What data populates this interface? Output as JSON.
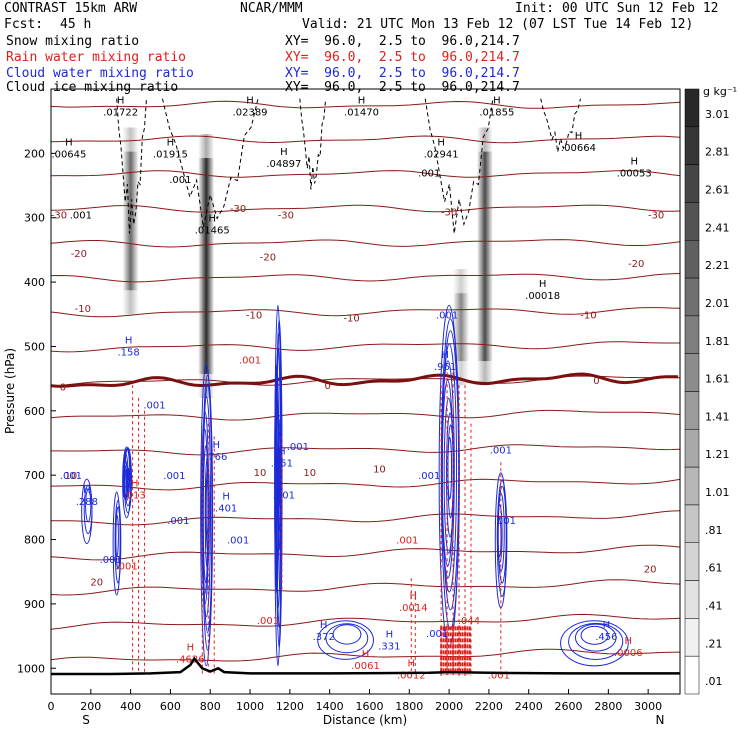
{
  "header": {
    "model": "CONTRAST 15km ARW",
    "org": "NCAR/MMM",
    "init": "Init: 00 UTC Sun 12 Feb 12",
    "fcst_label": "Fcst:",
    "fcst_value": "45 h",
    "valid": "Valid: 21 UTC Mon 13 Feb 12 (07 LST Tue 14 Feb 12)"
  },
  "fields": [
    {
      "name": "Snow mixing ratio",
      "xy": "XY=  96.0,  2.5 to  96.0,214.7",
      "color": "#000000"
    },
    {
      "name": "Rain water mixing ratio",
      "xy": "XY=  96.0,  2.5 to  96.0,214.7",
      "color": "#e0201a"
    },
    {
      "name": "Cloud water mixing ratio",
      "xy": "XY=  96.0,  2.5 to  96.0,214.7",
      "color": "#1c2ad8"
    },
    {
      "name": "Cloud ice mixing ratio",
      "xy": "XY=  96.0,  2.5 to  96.0,214.7",
      "color": "#000000"
    }
  ],
  "chart_data": {
    "type": "heatmap",
    "title": "",
    "xlabel": "Distance (km)",
    "ylabel": "Pressure (hPa)",
    "x_end_labels": {
      "left": "S",
      "right": "N"
    },
    "xlim": [
      0,
      3160
    ],
    "ylim": [
      1040,
      100
    ],
    "y_inverted": true,
    "x_ticks": [
      0,
      200,
      400,
      600,
      800,
      1000,
      1200,
      1400,
      1600,
      1800,
      2000,
      2200,
      2400,
      2600,
      2800,
      3000
    ],
    "y_ticks": [
      200,
      300,
      400,
      500,
      600,
      700,
      800,
      900,
      1000
    ],
    "colorbar": {
      "units": "g kg⁻¹",
      "levels": [
        "3.01",
        "2.81",
        "2.61",
        "2.41",
        "2.21",
        "2.01",
        "1.81",
        "1.61",
        "1.41",
        "1.21",
        "1.01",
        ".81",
        ".61",
        ".41",
        ".21",
        ".01"
      ]
    },
    "snow_columns": [
      {
        "x": 400,
        "p_top": 160,
        "p_bottom": 450,
        "peak": 0.6
      },
      {
        "x": 780,
        "p_top": 170,
        "p_bottom": 580,
        "peak": 1.2
      },
      {
        "x": 2180,
        "p_top": 160,
        "p_bottom": 560,
        "peak": 0.9
      },
      {
        "x": 2060,
        "p_top": 380,
        "p_bottom": 560,
        "peak": 0.3
      }
    ],
    "isotherms": [
      {
        "temp": -30,
        "p_left": 280,
        "p_right": 280
      },
      {
        "temp": -20,
        "p_left": 350,
        "p_right": 350
      },
      {
        "temp": -10,
        "p_left": 440,
        "p_right": 440
      },
      {
        "temp": 0,
        "p_left": 558,
        "p_right": 548,
        "bold": true
      },
      {
        "temp": 10,
        "p_left": 700,
        "p_right": 690
      },
      {
        "temp": 20,
        "p_left": 840,
        "p_right": 830
      }
    ],
    "contour_labels": [
      {
        "text": "-30",
        "x": 40,
        "p": 295,
        "color": "#8b1a1a"
      },
      {
        "text": "-30",
        "x": 1180,
        "p": 295,
        "color": "#8b1a1a"
      },
      {
        "text": "-30",
        "x": 2000,
        "p": 290,
        "color": "#8b1a1a"
      },
      {
        "text": "-30",
        "x": 3040,
        "p": 295,
        "color": "#8b1a1a"
      },
      {
        "text": "-30",
        "x": 940,
        "p": 285,
        "color": "#8b1a1a"
      },
      {
        "text": "-20",
        "x": 140,
        "p": 355,
        "color": "#8b1a1a"
      },
      {
        "text": "-20",
        "x": 1090,
        "p": 360,
        "color": "#8b1a1a"
      },
      {
        "text": "-20",
        "x": 2940,
        "p": 370,
        "color": "#8b1a1a"
      },
      {
        "text": "-10",
        "x": 160,
        "p": 440,
        "color": "#8b1a1a"
      },
      {
        "text": "-10",
        "x": 1020,
        "p": 450,
        "color": "#8b1a1a"
      },
      {
        "text": "-10",
        "x": 1510,
        "p": 455,
        "color": "#8b1a1a"
      },
      {
        "text": "-10",
        "x": 2700,
        "p": 450,
        "color": "#8b1a1a"
      },
      {
        "text": "0",
        "x": 60,
        "p": 562,
        "color": "#8b1a1a"
      },
      {
        "text": "0",
        "x": 1390,
        "p": 560,
        "color": "#8b1a1a"
      },
      {
        "text": "0",
        "x": 2740,
        "p": 552,
        "color": "#8b1a1a"
      },
      {
        "text": "10",
        "x": 100,
        "p": 700,
        "color": "#8b1a1a"
      },
      {
        "text": "10",
        "x": 1050,
        "p": 695,
        "color": "#8b1a1a"
      },
      {
        "text": "10",
        "x": 1300,
        "p": 695,
        "color": "#8b1a1a"
      },
      {
        "text": "10",
        "x": 1650,
        "p": 690,
        "color": "#8b1a1a"
      },
      {
        "text": "20",
        "x": 230,
        "p": 865,
        "color": "#8b1a1a"
      },
      {
        "text": "20",
        "x": 3010,
        "p": 845,
        "color": "#8b1a1a"
      }
    ],
    "extrema": [
      {
        "type": "H",
        "value": ".01722",
        "x": 350,
        "p": 135,
        "color": "#000000"
      },
      {
        "type": "H",
        "value": ".02389",
        "x": 1000,
        "p": 135,
        "color": "#000000"
      },
      {
        "type": "H",
        "value": ".01470",
        "x": 1560,
        "p": 135,
        "color": "#000000"
      },
      {
        "type": "H",
        "value": ".01855",
        "x": 2240,
        "p": 135,
        "color": "#000000"
      },
      {
        "type": "H",
        "value": ".00645",
        "x": 90,
        "p": 200,
        "color": "#000000"
      },
      {
        "type": "H",
        "value": ".01915",
        "x": 600,
        "p": 200,
        "color": "#000000"
      },
      {
        "type": "H",
        "value": ".04897",
        "x": 1170,
        "p": 215,
        "color": "#000000"
      },
      {
        "type": "H",
        "value": ".02941",
        "x": 1960,
        "p": 200,
        "color": "#000000"
      },
      {
        "type": "H",
        "value": ".00664",
        "x": 2650,
        "p": 190,
        "color": "#000000"
      },
      {
        "type": "H",
        "value": ".00053",
        "x": 2930,
        "p": 230,
        "color": "#000000"
      },
      {
        "type": "H",
        "value": ".01465",
        "x": 810,
        "p": 318,
        "color": "#000000"
      },
      {
        "type": "H",
        "value": ".00018",
        "x": 2470,
        "p": 420,
        "color": "#000000"
      },
      {
        "type": "H",
        "value": ".4626",
        "x": 700,
        "p": 985,
        "color": "#e0201a"
      },
      {
        "type": "H",
        "value": ".0061",
        "x": 1580,
        "p": 995,
        "color": "#e0201a"
      },
      {
        "type": "H",
        "value": ".0012",
        "x": 1810,
        "p": 1010,
        "color": "#e0201a"
      },
      {
        "type": "H",
        "value": ".0014",
        "x": 1820,
        "p": 905,
        "color": "#e0201a"
      },
      {
        "type": "H",
        "value": ".013",
        "x": 420,
        "p": 730,
        "color": "#e0201a"
      },
      {
        "type": "H",
        "value": ".0006",
        "x": 2900,
        "p": 975,
        "color": "#e0201a"
      },
      {
        "type": "H",
        "value": ".158",
        "x": 390,
        "p": 508,
        "color": "#1c2ad8"
      },
      {
        "type": "H",
        "value": ".288",
        "x": 180,
        "p": 740,
        "color": "#1c2ad8"
      },
      {
        "type": "H",
        "value": ".766",
        "x": 830,
        "p": 670,
        "color": "#1c2ad8"
      },
      {
        "type": "H",
        "value": ".401",
        "x": 880,
        "p": 750,
        "color": "#1c2ad8"
      },
      {
        "type": "H",
        "value": ".551",
        "x": 1160,
        "p": 680,
        "color": "#1c2ad8"
      },
      {
        "type": "H",
        "value": ".961",
        "x": 1980,
        "p": 530,
        "color": "#1c2ad8"
      },
      {
        "type": "H",
        "value": ".372",
        "x": 1370,
        "p": 950,
        "color": "#1c2ad8"
      },
      {
        "type": "H",
        "value": ".331",
        "x": 1700,
        "p": 965,
        "color": "#1c2ad8"
      },
      {
        "type": "H",
        "value": ".456",
        "x": 2790,
        "p": 950,
        "color": "#1c2ad8"
      }
    ],
    "small_labels": [
      {
        "text": ".001",
        "x": 150,
        "p": 295,
        "color": "#000000"
      },
      {
        "text": ".001",
        "x": 650,
        "p": 240,
        "color": "#000000"
      },
      {
        "text": ".001",
        "x": 1900,
        "p": 230,
        "color": "#000000"
      },
      {
        "text": ".001",
        "x": 1990,
        "p": 450,
        "color": "#1c2ad8"
      },
      {
        "text": ".001",
        "x": 520,
        "p": 590,
        "color": "#1c2ad8"
      },
      {
        "text": ".001",
        "x": 100,
        "p": 700,
        "color": "#1c2ad8"
      },
      {
        "text": ".001",
        "x": 620,
        "p": 700,
        "color": "#1c2ad8"
      },
      {
        "text": ".001",
        "x": 640,
        "p": 770,
        "color": "#1c2ad8"
      },
      {
        "text": ".001",
        "x": 940,
        "p": 800,
        "color": "#1c2ad8"
      },
      {
        "text": ".001",
        "x": 1240,
        "p": 655,
        "color": "#1c2ad8"
      },
      {
        "text": ".001",
        "x": 1170,
        "p": 730,
        "color": "#1c2ad8"
      },
      {
        "text": ".001",
        "x": 1900,
        "p": 700,
        "color": "#1c2ad8"
      },
      {
        "text": ".001",
        "x": 2260,
        "p": 660,
        "color": "#1c2ad8"
      },
      {
        "text": ".001",
        "x": 2280,
        "p": 770,
        "color": "#1c2ad8"
      },
      {
        "text": ".001",
        "x": 300,
        "p": 830,
        "color": "#1c2ad8"
      },
      {
        "text": ".001",
        "x": 1940,
        "p": 945,
        "color": "#1c2ad8"
      },
      {
        "text": ".001",
        "x": 1000,
        "p": 520,
        "color": "#e0201a"
      },
      {
        "text": ".001",
        "x": 380,
        "p": 840,
        "color": "#e0201a"
      },
      {
        "text": ".001",
        "x": 1790,
        "p": 800,
        "color": "#e0201a"
      },
      {
        "text": ".001",
        "x": 2250,
        "p": 1010,
        "color": "#e0201a"
      },
      {
        "text": ".001",
        "x": 1090,
        "p": 925,
        "color": "#e0201a"
      },
      {
        "text": ".044",
        "x": 2100,
        "p": 925,
        "color": "#e0201a"
      }
    ],
    "terrain": [
      [
        0,
        1009
      ],
      [
        300,
        1009
      ],
      [
        500,
        1008
      ],
      [
        650,
        1006
      ],
      [
        700,
        995
      ],
      [
        720,
        985
      ],
      [
        760,
        1000
      ],
      [
        800,
        1005
      ],
      [
        840,
        1000
      ],
      [
        870,
        1006
      ],
      [
        1000,
        1008
      ],
      [
        1400,
        1008
      ],
      [
        1900,
        1007
      ],
      [
        2000,
        1006
      ],
      [
        2200,
        1007
      ],
      [
        2600,
        1008
      ],
      [
        3160,
        1008
      ]
    ]
  }
}
